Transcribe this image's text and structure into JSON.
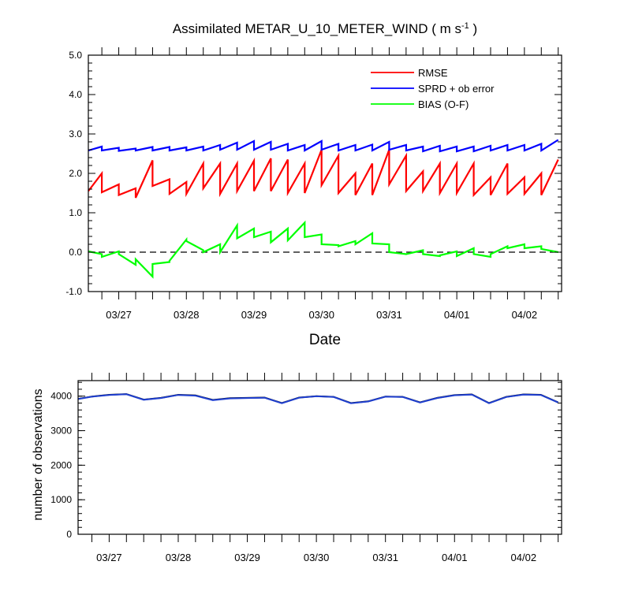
{
  "title": {
    "main": "Assimilated METAR_U_10_METER_WIND ( m s",
    "sup": "-1",
    "tail": " )"
  },
  "chart_data": [
    {
      "type": "line",
      "xlabel": "Date",
      "ylabel": "",
      "ylim": [
        -1.0,
        5.0
      ],
      "yticks": [
        "-1.0",
        "0.0",
        "1.0",
        "2.0",
        "3.0",
        "4.0",
        "5.0"
      ],
      "xlim": [
        0.05,
        7.05
      ],
      "xtick_labels": [
        "03/27",
        "03/28",
        "03/29",
        "03/30",
        "03/31",
        "04/01",
        "04/02"
      ],
      "legend_position": "top-right",
      "reference_line": {
        "y": 0.0,
        "style": "dashed"
      },
      "series": [
        {
          "name": "RMSE",
          "color": "#ff0000",
          "x": [
            0.05,
            0.25,
            0.25,
            0.5,
            0.5,
            0.75,
            0.75,
            1.0,
            1.0,
            1.25,
            1.25,
            1.5,
            1.5,
            1.75,
            1.75,
            2.0,
            2.0,
            2.25,
            2.25,
            2.5,
            2.5,
            2.75,
            2.75,
            3.0,
            3.0,
            3.25,
            3.25,
            3.5,
            3.5,
            3.75,
            3.75,
            4.0,
            4.0,
            4.25,
            4.25,
            4.5,
            4.5,
            4.75,
            4.75,
            5.0,
            5.0,
            5.25,
            5.25,
            5.5,
            5.5,
            5.75,
            5.75,
            6.0,
            6.0,
            6.25,
            6.25,
            6.5,
            6.5,
            6.75,
            6.75,
            7.0
          ],
          "y": [
            1.55,
            2.0,
            1.52,
            1.72,
            1.45,
            1.62,
            1.38,
            2.33,
            1.68,
            1.85,
            1.48,
            1.78,
            1.48,
            2.25,
            1.62,
            2.25,
            1.48,
            2.25,
            1.55,
            2.32,
            1.55,
            2.38,
            1.55,
            2.35,
            1.5,
            2.25,
            1.5,
            2.6,
            1.7,
            2.45,
            1.5,
            2.0,
            1.45,
            2.25,
            1.45,
            2.6,
            1.72,
            2.45,
            1.55,
            2.05,
            1.55,
            2.25,
            1.5,
            2.25,
            1.5,
            2.25,
            1.45,
            1.9,
            1.45,
            2.25,
            1.48,
            1.9,
            1.48,
            2.0,
            1.45,
            2.35
          ]
        },
        {
          "name": "SPRD + ob error",
          "color": "#0000ff",
          "x": [
            0.05,
            0.25,
            0.25,
            0.5,
            0.5,
            0.75,
            0.75,
            1.0,
            1.0,
            1.25,
            1.25,
            1.5,
            1.5,
            1.75,
            1.75,
            2.0,
            2.0,
            2.25,
            2.25,
            2.5,
            2.5,
            2.75,
            2.75,
            3.0,
            3.0,
            3.25,
            3.25,
            3.5,
            3.5,
            3.75,
            3.75,
            4.0,
            4.0,
            4.25,
            4.25,
            4.5,
            4.5,
            4.75,
            4.75,
            5.0,
            5.0,
            5.25,
            5.25,
            5.5,
            5.5,
            5.75,
            5.75,
            6.0,
            6.0,
            6.25,
            6.25,
            6.5,
            6.5,
            6.75,
            6.75,
            7.0
          ],
          "y": [
            2.58,
            2.68,
            2.58,
            2.65,
            2.57,
            2.63,
            2.58,
            2.67,
            2.58,
            2.67,
            2.58,
            2.66,
            2.58,
            2.68,
            2.58,
            2.72,
            2.6,
            2.78,
            2.6,
            2.82,
            2.6,
            2.8,
            2.6,
            2.75,
            2.58,
            2.72,
            2.58,
            2.82,
            2.6,
            2.75,
            2.58,
            2.72,
            2.58,
            2.73,
            2.58,
            2.8,
            2.6,
            2.72,
            2.58,
            2.68,
            2.56,
            2.7,
            2.56,
            2.68,
            2.56,
            2.68,
            2.56,
            2.7,
            2.58,
            2.72,
            2.58,
            2.72,
            2.58,
            2.75,
            2.58,
            2.85
          ]
        },
        {
          "name": "BIAS (O-F)",
          "color": "#00ff00",
          "x": [
            0.05,
            0.25,
            0.25,
            0.5,
            0.5,
            0.75,
            0.75,
            1.0,
            1.0,
            1.25,
            1.25,
            1.5,
            1.5,
            1.75,
            1.75,
            2.0,
            2.0,
            2.25,
            2.25,
            2.5,
            2.5,
            2.75,
            2.75,
            3.0,
            3.0,
            3.25,
            3.25,
            3.5,
            3.5,
            3.75,
            3.75,
            4.0,
            4.0,
            4.25,
            4.25,
            4.5,
            4.5,
            4.75,
            4.75,
            5.0,
            5.0,
            5.25,
            5.25,
            5.5,
            5.5,
            5.75,
            5.75,
            6.0,
            6.0,
            6.25,
            6.25,
            6.5,
            6.5,
            6.75,
            6.75,
            7.0
          ],
          "y": [
            0.02,
            -0.05,
            -0.12,
            0.02,
            -0.05,
            -0.32,
            -0.18,
            -0.62,
            -0.3,
            -0.25,
            -0.22,
            0.32,
            0.28,
            0.05,
            0.0,
            0.2,
            0.0,
            0.68,
            0.35,
            0.6,
            0.38,
            0.52,
            0.25,
            0.6,
            0.3,
            0.75,
            0.38,
            0.45,
            0.2,
            0.18,
            0.15,
            0.28,
            0.2,
            0.48,
            0.22,
            0.2,
            0.0,
            -0.05,
            -0.05,
            0.05,
            -0.05,
            -0.1,
            -0.08,
            0.02,
            -0.1,
            0.1,
            -0.05,
            -0.12,
            -0.05,
            0.15,
            0.1,
            0.2,
            0.1,
            0.15,
            0.08,
            0.0
          ]
        }
      ]
    },
    {
      "type": "line",
      "xlabel": "",
      "ylabel": "number of observations",
      "ylim": [
        0,
        4450
      ],
      "yticks": [
        "0",
        "1000",
        "2000",
        "3000",
        "4000"
      ],
      "xlim": [
        0.05,
        7.05
      ],
      "xtick_labels": [
        "03/27",
        "03/28",
        "03/29",
        "03/30",
        "03/31",
        "04/01",
        "04/02"
      ],
      "series": [
        {
          "color": "#000000",
          "x": [
            0.05,
            0.25,
            0.5,
            0.75,
            1.0,
            1.25,
            1.5,
            1.75,
            2.0,
            2.25,
            2.5,
            2.75,
            3.0,
            3.25,
            3.5,
            3.75,
            4.0,
            4.25,
            4.5,
            4.75,
            5.0,
            5.25,
            5.5,
            5.75,
            6.0,
            6.25,
            6.5,
            6.75,
            7.0
          ],
          "y": [
            3920,
            3990,
            4040,
            4060,
            3900,
            3950,
            4040,
            4020,
            3890,
            3940,
            3950,
            3960,
            3800,
            3960,
            4000,
            3980,
            3800,
            3850,
            3990,
            3980,
            3820,
            3950,
            4030,
            4050,
            3800,
            3980,
            4050,
            4040,
            3820
          ]
        },
        {
          "color": "#1f3fd0",
          "x": [
            0.05,
            0.25,
            0.5,
            0.75,
            1.0,
            1.25,
            1.5,
            1.75,
            2.0,
            2.25,
            2.5,
            2.75,
            3.0,
            3.25,
            3.5,
            3.75,
            4.0,
            4.25,
            4.5,
            4.75,
            5.0,
            5.25,
            5.5,
            5.75,
            6.0,
            6.25,
            6.5,
            6.75,
            7.0
          ],
          "y": [
            3915,
            3985,
            4035,
            4055,
            3895,
            3945,
            4035,
            4015,
            3885,
            3935,
            3945,
            3955,
            3795,
            3955,
            3995,
            3975,
            3795,
            3845,
            3985,
            3975,
            3815,
            3945,
            4025,
            4045,
            3795,
            3975,
            4045,
            4035,
            3815
          ]
        }
      ]
    }
  ]
}
